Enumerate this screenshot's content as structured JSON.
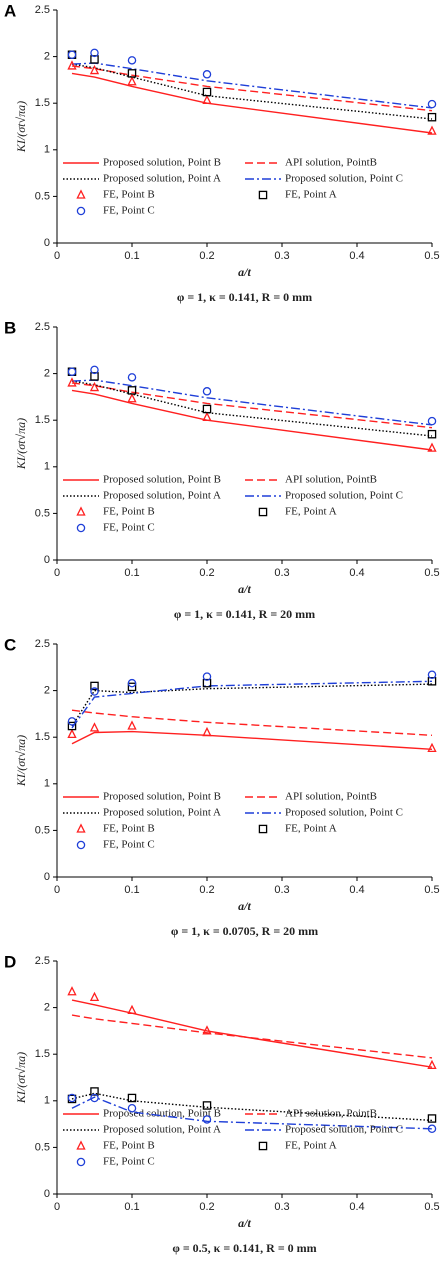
{
  "chart_data": [
    {
      "type": "line",
      "panel_label": "A",
      "caption": "φ = 1, κ = 0.141, R = 0 mm",
      "xlabel": "a/t",
      "ylabel": "KI/(σt√πa)",
      "xlim": [
        0,
        0.5
      ],
      "ylim": [
        0,
        2.5
      ],
      "xticks": [
        0,
        0.1,
        0.2,
        0.3,
        0.4,
        0.5
      ],
      "yticks": [
        0,
        0.5,
        1,
        1.5,
        2,
        2.5
      ],
      "x": [
        0.02,
        0.05,
        0.1,
        0.2,
        0.5
      ],
      "series": [
        {
          "name": "Proposed solution, Point B",
          "color": "#ff2020",
          "style": "solid",
          "values": [
            1.82,
            1.78,
            1.68,
            1.5,
            1.18
          ]
        },
        {
          "name": "API solution, PointB",
          "color": "#ff2020",
          "style": "dashed",
          "values": [
            1.9,
            1.87,
            1.8,
            1.68,
            1.42
          ]
        },
        {
          "name": "Proposed solution, Point A",
          "color": "#000000",
          "style": "dotted",
          "values": [
            1.92,
            1.88,
            1.78,
            1.58,
            1.33
          ]
        },
        {
          "name": "Proposed solution, Point C",
          "color": "#1f3fd8",
          "style": "dashdot",
          "values": [
            1.92,
            1.93,
            1.87,
            1.74,
            1.45
          ]
        },
        {
          "name": "FE, Point B",
          "color": "#ff2020",
          "style": "triangle",
          "values": [
            1.9,
            1.85,
            1.73,
            1.53,
            1.2
          ]
        },
        {
          "name": "FE, Point A",
          "color": "#000000",
          "style": "square",
          "values": [
            2.02,
            1.97,
            1.82,
            1.62,
            1.35
          ]
        },
        {
          "name": "FE, Point C",
          "color": "#1f3fd8",
          "style": "circle",
          "values": [
            2.02,
            2.04,
            1.96,
            1.81,
            1.49
          ]
        }
      ]
    },
    {
      "type": "line",
      "panel_label": "B",
      "caption": "φ = 1, κ = 0.141, R = 20 mm",
      "xlabel": "a/t",
      "ylabel": "KI/(σt√πa)",
      "xlim": [
        0,
        0.5
      ],
      "ylim": [
        0,
        2.5
      ],
      "xticks": [
        0,
        0.1,
        0.2,
        0.3,
        0.4,
        0.5
      ],
      "yticks": [
        0,
        0.5,
        1,
        1.5,
        2,
        2.5
      ],
      "x": [
        0.02,
        0.05,
        0.1,
        0.2,
        0.5
      ],
      "series": [
        {
          "name": "Proposed solution, Point B",
          "color": "#ff2020",
          "style": "solid",
          "values": [
            1.82,
            1.78,
            1.68,
            1.5,
            1.18
          ]
        },
        {
          "name": "API solution, PointB",
          "color": "#ff2020",
          "style": "dashed",
          "values": [
            1.9,
            1.87,
            1.8,
            1.68,
            1.42
          ]
        },
        {
          "name": "Proposed solution, Point A",
          "color": "#000000",
          "style": "dotted",
          "values": [
            1.92,
            1.88,
            1.78,
            1.58,
            1.33
          ]
        },
        {
          "name": "Proposed solution, Point C",
          "color": "#1f3fd8",
          "style": "dashdot",
          "values": [
            1.92,
            1.93,
            1.87,
            1.74,
            1.45
          ]
        },
        {
          "name": "FE, Point B",
          "color": "#ff2020",
          "style": "triangle",
          "values": [
            1.9,
            1.85,
            1.73,
            1.53,
            1.2
          ]
        },
        {
          "name": "FE, Point A",
          "color": "#000000",
          "style": "square",
          "values": [
            2.02,
            1.97,
            1.82,
            1.62,
            1.35
          ]
        },
        {
          "name": "FE, Point C",
          "color": "#1f3fd8",
          "style": "circle",
          "values": [
            2.02,
            2.04,
            1.96,
            1.81,
            1.49
          ]
        }
      ]
    },
    {
      "type": "line",
      "panel_label": "C",
      "caption": "φ = 1, κ = 0.0705, R = 20 mm",
      "xlabel": "a/t",
      "ylabel": "KI/(σt√πa)",
      "xlim": [
        0,
        0.5
      ],
      "ylim": [
        0,
        2.5
      ],
      "xticks": [
        0,
        0.1,
        0.2,
        0.3,
        0.4,
        0.5
      ],
      "yticks": [
        0,
        0.5,
        1,
        1.5,
        2,
        2.5
      ],
      "x": [
        0.02,
        0.05,
        0.1,
        0.2,
        0.5
      ],
      "series": [
        {
          "name": "Proposed solution, Point B",
          "color": "#ff2020",
          "style": "solid",
          "values": [
            1.43,
            1.55,
            1.56,
            1.52,
            1.37
          ]
        },
        {
          "name": "API solution, PointB",
          "color": "#ff2020",
          "style": "dashed",
          "values": [
            1.79,
            1.76,
            1.72,
            1.66,
            1.52
          ]
        },
        {
          "name": "Proposed solution, Point A",
          "color": "#000000",
          "style": "dotted",
          "values": [
            1.62,
            2.0,
            1.98,
            2.02,
            2.07
          ]
        },
        {
          "name": "Proposed solution, Point C",
          "color": "#1f3fd8",
          "style": "dashdot",
          "values": [
            1.6,
            1.93,
            1.97,
            2.05,
            2.1
          ]
        },
        {
          "name": "FE, Point B",
          "color": "#ff2020",
          "style": "triangle",
          "values": [
            1.53,
            1.6,
            1.62,
            1.55,
            1.38
          ]
        },
        {
          "name": "FE, Point A",
          "color": "#000000",
          "style": "square",
          "values": [
            1.62,
            2.05,
            2.04,
            2.08,
            2.1
          ]
        },
        {
          "name": "FE, Point C",
          "color": "#1f3fd8",
          "style": "circle",
          "values": [
            1.67,
            1.99,
            2.08,
            2.15,
            2.17
          ]
        }
      ]
    },
    {
      "type": "line",
      "panel_label": "D",
      "caption": "φ = 0.5, κ = 0.141, R = 0 mm",
      "xlabel": "a/t",
      "ylabel": "KI/(σt√πa)",
      "xlim": [
        0,
        0.5
      ],
      "ylim": [
        0,
        2.5
      ],
      "xticks": [
        0,
        0.1,
        0.2,
        0.3,
        0.4,
        0.5
      ],
      "yticks": [
        0,
        0.5,
        1,
        1.5,
        2,
        2.5
      ],
      "x": [
        0.02,
        0.05,
        0.1,
        0.2,
        0.5
      ],
      "series": [
        {
          "name": "Proposed solution, Point B",
          "color": "#ff2020",
          "style": "solid",
          "values": [
            2.08,
            2.03,
            1.94,
            1.75,
            1.36
          ]
        },
        {
          "name": "API solution, PointB",
          "color": "#ff2020",
          "style": "dashed",
          "values": [
            1.92,
            1.88,
            1.83,
            1.73,
            1.46
          ]
        },
        {
          "name": "Proposed solution, Point A",
          "color": "#000000",
          "style": "dotted",
          "values": [
            1.02,
            1.08,
            1.0,
            0.93,
            0.79
          ]
        },
        {
          "name": "Proposed solution, Point C",
          "color": "#1f3fd8",
          "style": "dashdot",
          "values": [
            0.92,
            1.04,
            0.88,
            0.78,
            0.7
          ]
        },
        {
          "name": "FE, Point B",
          "color": "#ff2020",
          "style": "triangle",
          "values": [
            2.17,
            2.11,
            1.97,
            1.75,
            1.38
          ]
        },
        {
          "name": "FE, Point A",
          "color": "#000000",
          "style": "square",
          "values": [
            1.02,
            1.1,
            1.03,
            0.95,
            0.81
          ]
        },
        {
          "name": "FE, Point C",
          "color": "#1f3fd8",
          "style": "circle",
          "values": [
            1.03,
            1.03,
            0.92,
            0.8,
            0.7
          ]
        }
      ]
    }
  ]
}
